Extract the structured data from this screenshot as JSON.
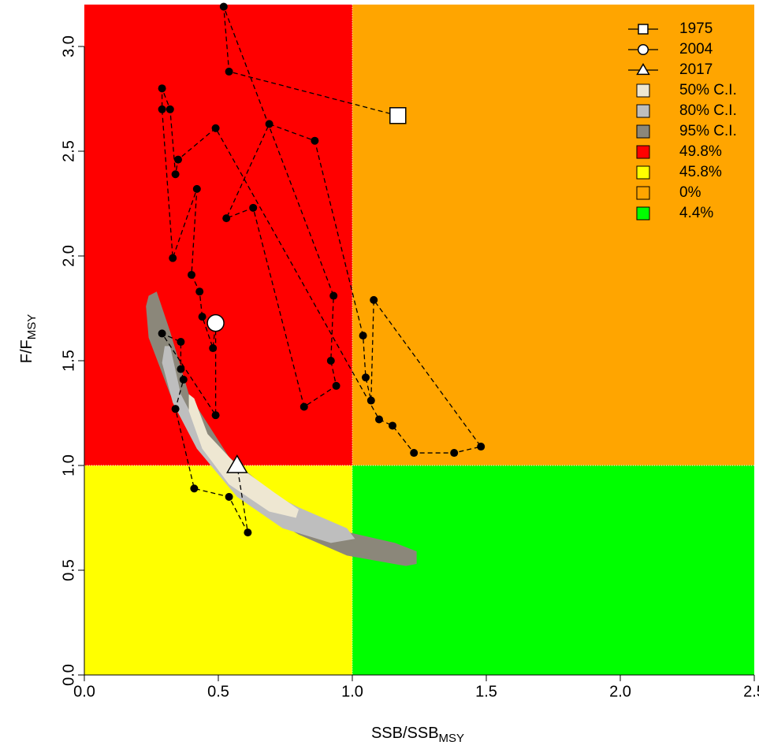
{
  "chart_data": {
    "type": "kobe",
    "xlabel": {
      "main": "SSB/SSB",
      "sub": "MSY"
    },
    "ylabel": {
      "main": "F/F",
      "sub": "MSY"
    },
    "xlim": [
      0,
      2.5
    ],
    "ylim": [
      0,
      3.2
    ],
    "xticks": [
      {
        "value": 0,
        "label": "0.0"
      },
      0.5,
      {
        "value": 1,
        "label": "1.0"
      },
      1.5,
      {
        "value": 2,
        "label": "2.0"
      },
      2.5
    ],
    "yticks": [
      {
        "value": 0,
        "label": "0.0"
      },
      0.5,
      {
        "value": 1,
        "label": "1.0"
      },
      1.5,
      {
        "value": 2,
        "label": "2.0"
      },
      2.5,
      {
        "value": 3,
        "label": "3.0"
      }
    ],
    "x_ref": 1,
    "y_ref": 1,
    "quadrants": {
      "colors": [
        "#ff0000",
        "#ffff00",
        "#ffa500",
        "#00ff00"
      ],
      "values": [
        49.8,
        45.8,
        0,
        4.4
      ],
      "value_labels": [
        "49.8%",
        "45.8%",
        "0%",
        "4.4%"
      ]
    },
    "regions": [
      {
        "name": "95% C.I.",
        "color": "#8b877a",
        "x": [
          0.24,
          0.27,
          0.32,
          0.39,
          0.54,
          0.72,
          0.92,
          1.16,
          1.24,
          1.24,
          1.2,
          0.98,
          0.8,
          0.63,
          0.45,
          0.32,
          0.24,
          0.23
        ],
        "y": [
          1.81,
          1.83,
          1.64,
          1.34,
          1.04,
          0.85,
          0.7,
          0.63,
          0.59,
          0.53,
          0.52,
          0.57,
          0.67,
          0.8,
          1.04,
          1.34,
          1.61,
          1.76
        ]
      },
      {
        "name": "80% C.I.",
        "color": "#bebebe",
        "x": [
          0.3,
          0.32,
          0.36,
          0.45,
          0.6,
          0.8,
          0.98,
          1.01,
          0.92,
          0.74,
          0.57,
          0.42,
          0.33,
          0.29
        ],
        "y": [
          1.57,
          1.57,
          1.34,
          1.12,
          0.93,
          0.8,
          0.7,
          0.65,
          0.63,
          0.7,
          0.85,
          1.08,
          1.3,
          1.49
        ]
      },
      {
        "name": "50% C.I.",
        "color": "#eee7d2",
        "x": [
          0.39,
          0.41,
          0.46,
          0.57,
          0.71,
          0.8,
          0.79,
          0.69,
          0.54,
          0.44,
          0.39
        ],
        "y": [
          1.34,
          1.32,
          1.15,
          1.0,
          0.87,
          0.79,
          0.75,
          0.78,
          0.91,
          1.08,
          1.26
        ]
      }
    ],
    "series": [
      {
        "color": "#000000",
        "x": [
          1.17,
          0.54,
          0.52,
          0.93,
          0.92,
          0.94,
          0.82,
          0.63,
          0.53,
          0.69,
          0.86,
          1.04,
          1.05,
          1.07,
          1.08,
          1.48,
          1.38,
          1.23,
          1.15,
          1.1,
          0.49,
          0.35,
          0.34,
          0.32,
          0.29,
          0.29,
          0.33,
          0.42,
          0.4,
          0.43,
          0.44,
          0.48,
          0.49,
          0.49,
          0.29,
          0.36,
          0.36,
          0.37,
          0.34,
          0.41,
          0.54,
          0.61,
          0.57
        ],
        "values": [
          2.67,
          2.88,
          3.19,
          1.81,
          1.5,
          1.38,
          1.28,
          2.23,
          2.18,
          2.63,
          2.55,
          1.62,
          1.42,
          1.31,
          1.79,
          1.09,
          1.06,
          1.06,
          1.19,
          1.22,
          2.61,
          2.46,
          2.39,
          2.7,
          2.8,
          2.7,
          1.99,
          2.32,
          1.91,
          1.83,
          1.71,
          1.56,
          1.68,
          1.24,
          1.63,
          1.59,
          1.46,
          1.41,
          1.27,
          0.89,
          0.85,
          0.68,
          1.0
        ]
      }
    ],
    "markers": [
      {
        "name": "1975",
        "shape": "square",
        "x": 1.17,
        "value": 2.67
      },
      {
        "name": "2004",
        "shape": "circle",
        "x": 0.49,
        "value": 1.68
      },
      {
        "name": "2017",
        "shape": "triangle",
        "x": 0.57,
        "value": 1.0
      }
    ],
    "legend": "top-right"
  }
}
